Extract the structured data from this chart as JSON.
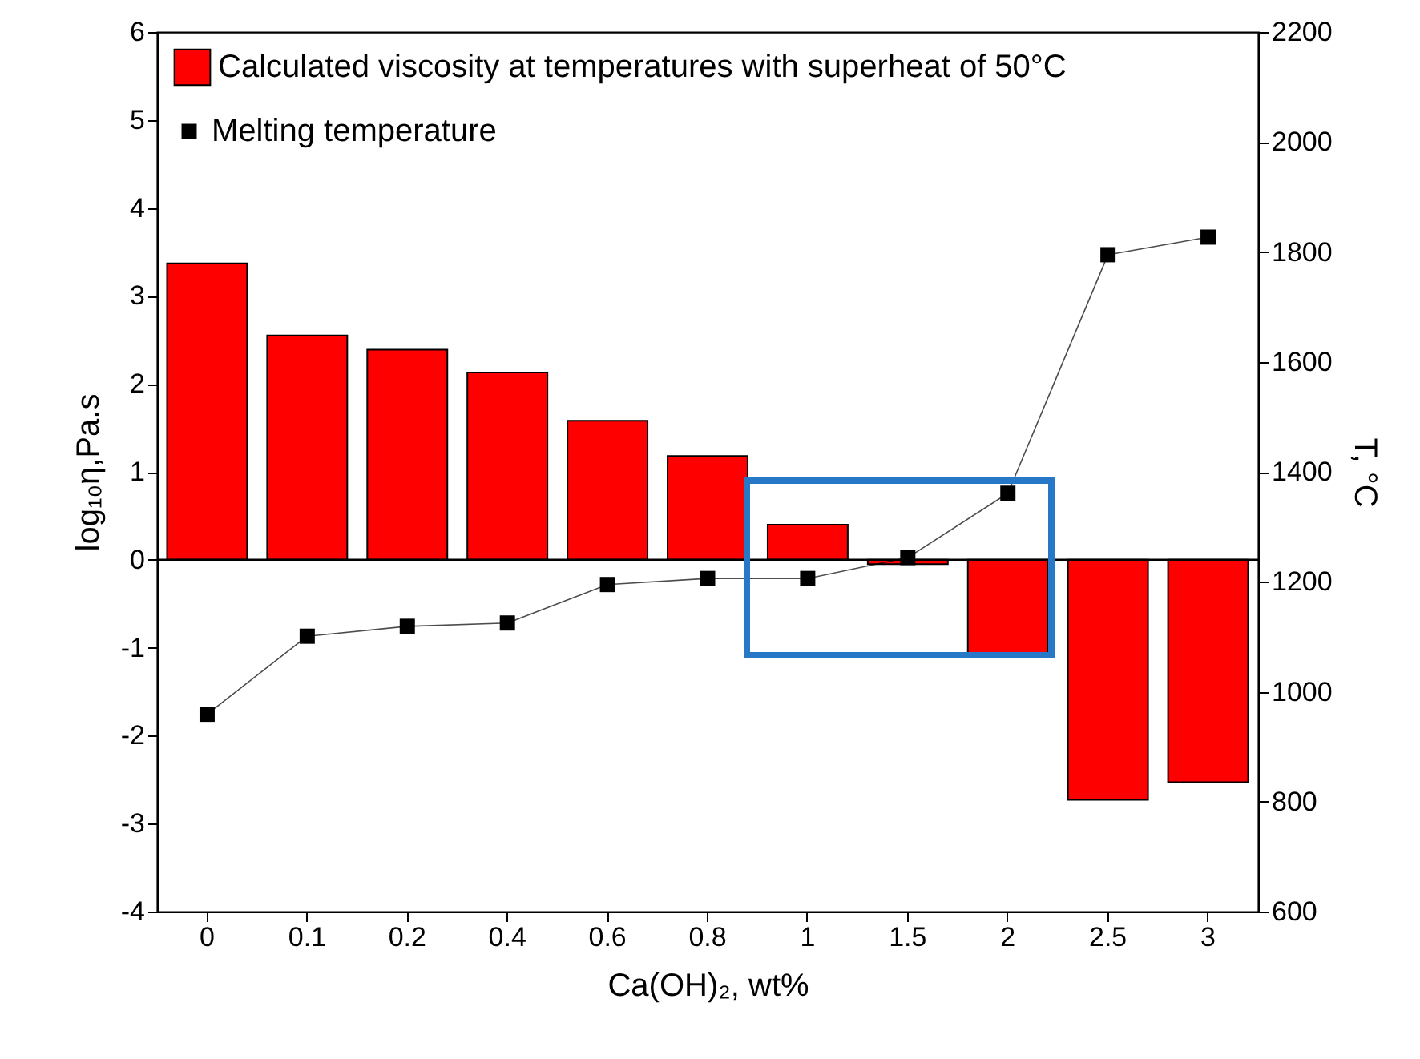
{
  "chart_data": {
    "type": "bar",
    "xlabel": "Ca(OH)₂, wt%",
    "ylabel": "log₁₀η,Pa.s",
    "y2label": "T, °C",
    "categories": [
      "0",
      "0.1",
      "0.2",
      "0.4",
      "0.6",
      "0.8",
      "1",
      "1.5",
      "2",
      "2.5",
      "3"
    ],
    "series": [
      {
        "name": "Calculated viscosity at temperatures with superheat of 50°C",
        "color": "#ff0000",
        "values": [
          3.37,
          2.55,
          2.39,
          2.13,
          1.58,
          1.18,
          0.4,
          -0.05,
          -1.06,
          -2.73,
          -2.53
        ]
      },
      {
        "name": "Melting temperature",
        "type": "line",
        "axis": "y2",
        "color": "#000000",
        "marker": "square",
        "values": [
          959,
          1101,
          1119,
          1125,
          1195,
          1206,
          1206,
          1244,
          1361,
          1795,
          1827
        ]
      }
    ],
    "ylim": [
      -4,
      6
    ],
    "yticks": [
      -4,
      -3,
      -2,
      -1,
      0,
      1,
      2,
      3,
      4,
      5,
      6
    ],
    "y2lim": [
      600,
      2200
    ],
    "y2ticks": [
      600,
      800,
      1000,
      1200,
      1400,
      1600,
      1800,
      2000,
      2200
    ],
    "ref_lines": [
      {
        "axis": "y",
        "value": 0,
        "color": "#000000"
      }
    ],
    "legend": "top left",
    "grid": false
  }
}
